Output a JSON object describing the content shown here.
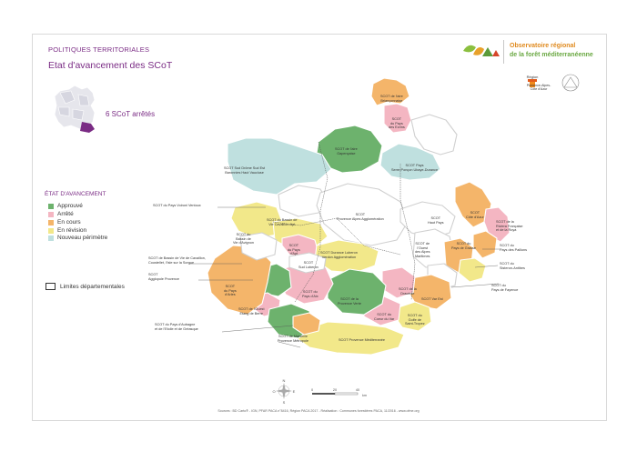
{
  "header": {
    "kicker": "POLITIQUES TERRITORIALES",
    "title": "Etat d'avancement des SCoT"
  },
  "logo": {
    "line1": "Observatoire régional",
    "line2": "de la forêt méditerranéenne",
    "region_label": "Provence-Alpes-Côte d'Azur",
    "region_word": "Région"
  },
  "inset": {
    "scot_count": "6 SCoT arrêtés"
  },
  "legend": {
    "title": "ÉTAT D'AVANCEMENT",
    "items": [
      {
        "label": "Approuvé",
        "color": "#6db26d"
      },
      {
        "label": "Arrêté",
        "color": "#f4b6c2"
      },
      {
        "label": "En cours",
        "color": "#f4b56a"
      },
      {
        "label": "En révision",
        "color": "#f2e88a"
      },
      {
        "label": "Nouveau périmètre",
        "color": "#bfe0df"
      }
    ],
    "limits": "Limites départementales"
  },
  "map_labels": [
    {
      "text": "SCOT de l'aire\nBriançonnaise"
    },
    {
      "text": "SCOT\ndu Pays\ndes Ecrins"
    },
    {
      "text": "SCOT Sud Drôme Sud Est\nBaronnies Haut Vaucluse"
    },
    {
      "text": "SCOT de l'aire\nGapençaise"
    },
    {
      "text": "SCOT Pays\nSerre-Ponçon Ubaye-Durance"
    },
    {
      "text": "SCOT du Pays Voironi Ventoux"
    },
    {
      "text": "SCOT du Bassin de\nVie Cavaillon-Apt"
    },
    {
      "text": "SCOT\nProvence Alpes Agglomération"
    },
    {
      "text": "SCOT du\nBassin de\nVie d'Avignon"
    },
    {
      "text": "SCOT\nHaut Pays"
    },
    {
      "text": "SCOT\nCôte d'Azur"
    },
    {
      "text": "SCOT de la\nRiviera Française\net de la Roya"
    },
    {
      "text": "SCOT\ndu Pays\nd'Apt"
    },
    {
      "text": "SCOT Durance Luberon\nVerdon Agglomération"
    },
    {
      "text": "SCOT du\nPays de Grasse"
    },
    {
      "text": "SCOT du\nPays des Paillons"
    },
    {
      "text": "SCOT de Bassin de Vie de Cavaillon,\nCoustellet, l'Isle sur la Sorgue"
    },
    {
      "text": "SCOT\nSud Luberon"
    },
    {
      "text": "SCOT de\nl'Ouest\ndes Alpes\nMaritimes"
    },
    {
      "text": "SCOT du\nSisteron-Antibes"
    },
    {
      "text": "SCOT\nAgglopole Provence"
    },
    {
      "text": "SCOT\ndu Pays\nd'Arles"
    },
    {
      "text": "SCOT du\nPays d'Aix"
    },
    {
      "text": "SCOT de la\nProvence Verte"
    },
    {
      "text": "SCOT de la\nDracénie"
    },
    {
      "text": "SCOT Var Est"
    },
    {
      "text": "SCOT du\nPays de Fayence"
    },
    {
      "text": "SCOT de l'Ouest\nEtang de Berre"
    },
    {
      "text": "SCOT du\nCoeur du Var"
    },
    {
      "text": "SCOT du\nGolfe de\nSaint-Tropez"
    },
    {
      "text": "SCOT du Pays d'Aubagne\net de l'Etoile et de Gréasque"
    },
    {
      "text": "SCOT de Marseille\nProvence Métropole"
    },
    {
      "text": "SCOT Provence Méditerranée"
    }
  ],
  "compass": {
    "n": "N",
    "s": "S",
    "e": "E",
    "o": "O"
  },
  "scale": {
    "ticks": [
      "0",
      "20",
      "40"
    ],
    "unit": "km"
  },
  "footer": "Sources : BD Carto® - IGN, PFAR PACA n°8416, Région PACA 2017 - Réalisation : Communes forestières PACA, 11/2016 - www.ofme.org"
}
